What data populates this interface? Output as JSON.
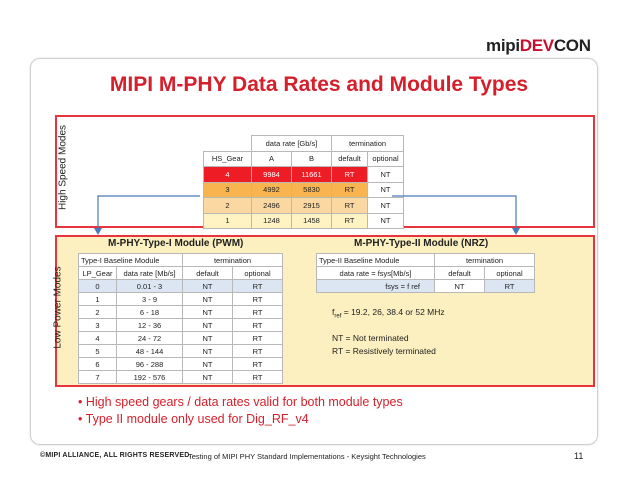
{
  "logo": {
    "part1": "mipi",
    "part2": "DEV",
    "part3": "CON"
  },
  "title": "MIPI M-PHY Data Rates and Module Types",
  "hs_section": {
    "label": "High Speed Modes",
    "header_group": [
      "data rate [Gb/s]",
      "termination"
    ],
    "columns": [
      "HS_Gear",
      "A",
      "B",
      "default",
      "optional"
    ],
    "rows": [
      [
        "4",
        "9984",
        "11661",
        "RT",
        "NT"
      ],
      [
        "3",
        "4992",
        "5830",
        "RT",
        "NT"
      ],
      [
        "2",
        "2496",
        "2915",
        "RT",
        "NT"
      ],
      [
        "1",
        "1248",
        "1458",
        "RT",
        "NT"
      ]
    ]
  },
  "lp_section": {
    "label": "Low Power Modes",
    "pwm": {
      "title": "M-PHY-Type-I Module (PWM)",
      "header_group": [
        "Type-I Baseline Module",
        "termination"
      ],
      "columns": [
        "LP_Gear",
        "data rate [Mb/s]",
        "default",
        "optional"
      ],
      "rows": [
        [
          "0",
          "0.01  -   3",
          "NT",
          "RT"
        ],
        [
          "1",
          "3   -   9",
          "NT",
          "RT"
        ],
        [
          "2",
          "6   -  18",
          "NT",
          "RT"
        ],
        [
          "3",
          "12  -  36",
          "NT",
          "RT"
        ],
        [
          "4",
          "24  -  72",
          "NT",
          "RT"
        ],
        [
          "5",
          "48  -  144",
          "NT",
          "RT"
        ],
        [
          "6",
          "96  -  288",
          "NT",
          "RT"
        ],
        [
          "7",
          "192  -  576",
          "NT",
          "RT"
        ]
      ]
    },
    "nrz": {
      "title": "M-PHY-Type-II Module (NRZ)",
      "header_group": [
        "Type-II Baseline Module",
        "termination"
      ],
      "columns": [
        "data rate = fsys[Mb/s]",
        "default",
        "optional"
      ],
      "rows": [
        [
          "fsys = f ref",
          "NT",
          "RT"
        ]
      ]
    },
    "notes": {
      "fref_prefix": "f",
      "fref_sub": "ref",
      "fref_text": " = 19.2, 26, 38.4 or 52 MHz",
      "nt": "NT = Not terminated",
      "rt": "RT = Resistively terminated"
    }
  },
  "bullets": [
    "High speed gears / data rates valid for both module types",
    "Type II module only used for Dig_RF_v4"
  ],
  "footer": {
    "copyright": "©MIPI ALLIANCE, ALL RIGHTS RESERVED.",
    "text": "Testing of MIPI PHY Standard Implementations - Keysight Technologies",
    "page": "11"
  },
  "colors": {
    "accent_red": "#d51f2b",
    "box_border": "#e8343c",
    "lp_fill": "#fdf0c0",
    "gear4": "#ee1c25",
    "gear3": "#f7b44f",
    "gear2": "#fbd7a1",
    "gear1": "#fff3c4",
    "connector": "#4a7ab8"
  }
}
